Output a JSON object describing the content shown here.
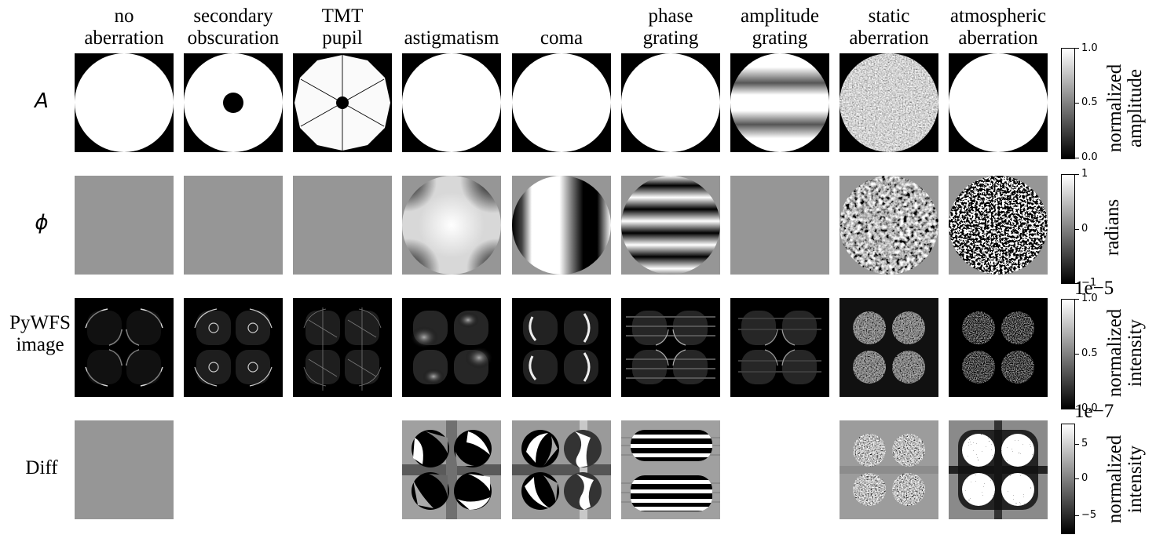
{
  "columns": [
    {
      "line1": "no",
      "line2": "aberration"
    },
    {
      "line1": "secondary",
      "line2": "obscuration"
    },
    {
      "line1": "TMT",
      "line2": "pupil"
    },
    {
      "line1": "",
      "line2": "astigmatism"
    },
    {
      "line1": "",
      "line2": "coma"
    },
    {
      "line1": "phase",
      "line2": "grating"
    },
    {
      "line1": "amplitude",
      "line2": "grating"
    },
    {
      "line1": "static",
      "line2": "aberration"
    },
    {
      "line1": "atmospheric",
      "line2": "aberration"
    }
  ],
  "rows": [
    {
      "line1": "A",
      "line2": ""
    },
    {
      "line1": "ϕ",
      "line2": ""
    },
    {
      "line1": "PyWFS",
      "line2": "image"
    },
    {
      "line1": "Diff",
      "line2": ""
    }
  ],
  "colorbars": [
    {
      "label1": "normalized",
      "label2": "amplitude",
      "offset": "",
      "ticks": [
        "1.0",
        "0.5",
        "0.0"
      ]
    },
    {
      "label1": "",
      "label2": "radians",
      "offset": "",
      "ticks": [
        "1",
        "0",
        "−1"
      ]
    },
    {
      "label1": "normalized",
      "label2": "intensity",
      "offset": "1e−5",
      "ticks": [
        "1.0",
        "0.5",
        "0.0"
      ]
    },
    {
      "label1": "normalized",
      "label2": "intensity",
      "offset": "1e−7",
      "ticks": [
        "5",
        "0",
        "−5"
      ]
    }
  ],
  "colormap": {
    "low": "#000000",
    "high": "#ffffff",
    "mid": "#969696"
  }
}
